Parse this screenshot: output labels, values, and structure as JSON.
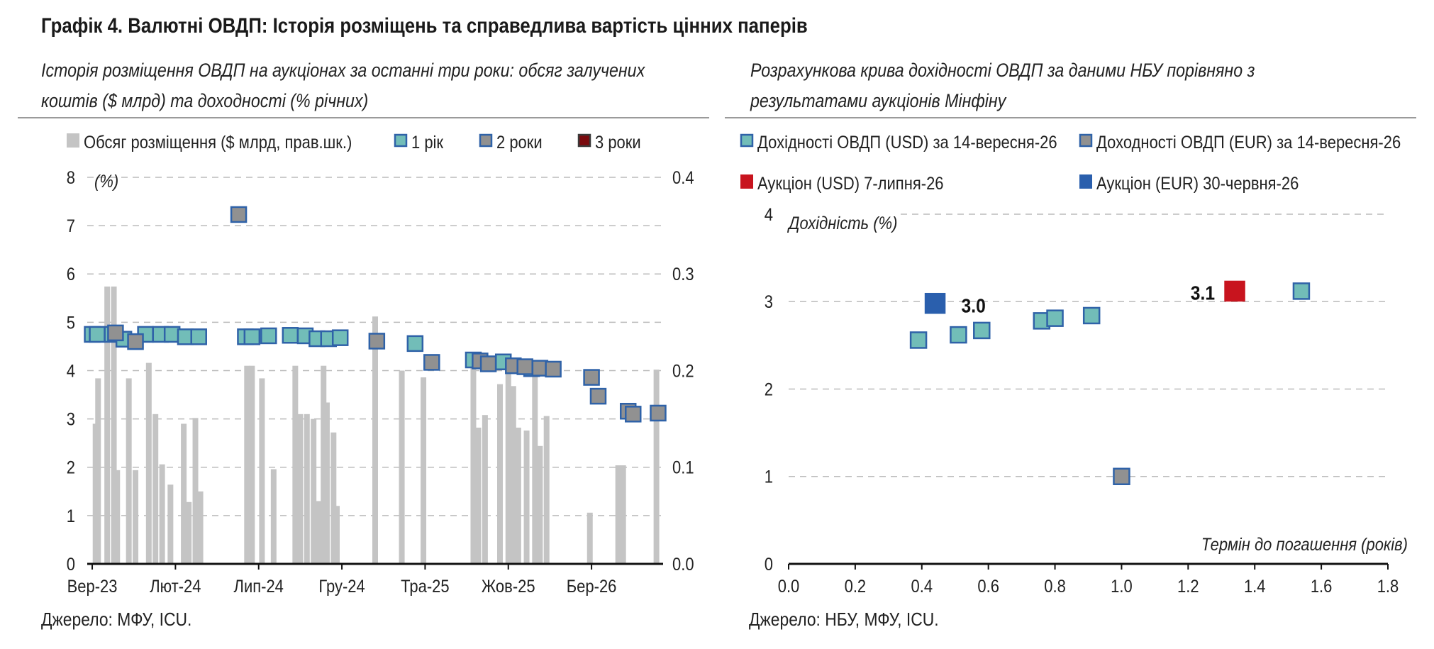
{
  "title": "Графік 4. Валютні ОВДП: Історія розміщень та справедлива вартість цінних паперів",
  "colors": {
    "bar": "#c4c4c4",
    "usd": "#72bdb8",
    "eur": "#919191",
    "border": "#2f62a8",
    "auction_usd": "#c8141e",
    "auction_eur": "#2a5fad",
    "three_year": "#7a0a0e",
    "grid": "#bbbbbb",
    "axis": "#111111"
  },
  "chart_data": [
    {
      "type": "bar+scatter",
      "subtitle": "Історія розміщення ОВДП на аукціонах за останні три роки: обсяг залучених коштів ($ млрд) та доходності (% річних)",
      "source": "Джерело: МФУ, ICU.",
      "y_unit": "(%)",
      "ylim": [
        0,
        8
      ],
      "y2lim": [
        0,
        0.4
      ],
      "y_ticks": [
        "0",
        "1",
        "2",
        "3",
        "4",
        "5",
        "6",
        "7",
        "8"
      ],
      "y2_ticks": [
        "0.0",
        "0.1",
        "0.2",
        "0.3",
        "0.4"
      ],
      "x_tick_labels": [
        {
          "label": "Вер-23",
          "at": 0
        },
        {
          "label": "Лют-24",
          "at": 5
        },
        {
          "label": "Лип-24",
          "at": 10
        },
        {
          "label": "Гру-24",
          "at": 15
        },
        {
          "label": "Тра-25",
          "at": 20
        },
        {
          "label": "Жов-25",
          "at": 25
        },
        {
          "label": "Бер-26",
          "at": 30
        }
      ],
      "x_span": [
        -0.3,
        34.3
      ],
      "grid": true,
      "legend": [
        "Обсяг розміщення ($ млрд, прав.шк.)",
        "1 рік",
        "2 роки",
        "3 роки"
      ],
      "legend_position": "top",
      "bars": [
        {
          "x": 0.2,
          "v": 0.145
        },
        {
          "x": 0.35,
          "v": 0.192
        },
        {
          "x": 0.9,
          "v": 0.287
        },
        {
          "x": 1.3,
          "v": 0.287
        },
        {
          "x": 1.5,
          "v": 0.097
        },
        {
          "x": 2.2,
          "v": 0.192
        },
        {
          "x": 2.6,
          "v": 0.097
        },
        {
          "x": 3.4,
          "v": 0.208
        },
        {
          "x": 3.8,
          "v": 0.155
        },
        {
          "x": 4.2,
          "v": 0.103
        },
        {
          "x": 4.7,
          "v": 0.082
        },
        {
          "x": 5.5,
          "v": 0.145
        },
        {
          "x": 5.8,
          "v": 0.064
        },
        {
          "x": 6.2,
          "v": 0.151
        },
        {
          "x": 6.5,
          "v": 0.075
        },
        {
          "x": 9.3,
          "v": 0.205
        },
        {
          "x": 9.6,
          "v": 0.205
        },
        {
          "x": 10.2,
          "v": 0.192
        },
        {
          "x": 10.9,
          "v": 0.098
        },
        {
          "x": 12.2,
          "v": 0.205
        },
        {
          "x": 12.5,
          "v": 0.155
        },
        {
          "x": 12.9,
          "v": 0.155
        },
        {
          "x": 13.3,
          "v": 0.15
        },
        {
          "x": 13.6,
          "v": 0.065
        },
        {
          "x": 13.9,
          "v": 0.205
        },
        {
          "x": 14.1,
          "v": 0.167
        },
        {
          "x": 14.5,
          "v": 0.136
        },
        {
          "x": 14.7,
          "v": 0.06
        },
        {
          "x": 17.0,
          "v": 0.256
        },
        {
          "x": 18.6,
          "v": 0.2
        },
        {
          "x": 19.9,
          "v": 0.193
        },
        {
          "x": 22.9,
          "v": 0.207
        },
        {
          "x": 23.2,
          "v": 0.141
        },
        {
          "x": 23.6,
          "v": 0.154
        },
        {
          "x": 24.5,
          "v": 0.186
        },
        {
          "x": 25.0,
          "v": 0.199
        },
        {
          "x": 25.3,
          "v": 0.184
        },
        {
          "x": 25.6,
          "v": 0.141
        },
        {
          "x": 26.1,
          "v": 0.138
        },
        {
          "x": 26.6,
          "v": 0.194
        },
        {
          "x": 26.9,
          "v": 0.122
        },
        {
          "x": 27.3,
          "v": 0.153
        },
        {
          "x": 29.9,
          "v": 0.053
        },
        {
          "x": 31.6,
          "v": 0.102
        },
        {
          "x": 31.9,
          "v": 0.102
        },
        {
          "x": 33.9,
          "v": 0.201
        }
      ],
      "series": [
        {
          "name": "1 рік",
          "points": [
            {
              "x": 0.0,
              "y": 4.75
            },
            {
              "x": 0.3,
              "y": 4.75
            },
            {
              "x": 1.2,
              "y": 4.75
            },
            {
              "x": 1.9,
              "y": 4.65
            },
            {
              "x": 3.2,
              "y": 4.75
            },
            {
              "x": 4.1,
              "y": 4.75
            },
            {
              "x": 4.8,
              "y": 4.75
            },
            {
              "x": 5.6,
              "y": 4.7
            },
            {
              "x": 6.4,
              "y": 4.7
            },
            {
              "x": 9.2,
              "y": 4.7
            },
            {
              "x": 9.6,
              "y": 4.7
            },
            {
              "x": 10.6,
              "y": 4.72
            },
            {
              "x": 11.9,
              "y": 4.73
            },
            {
              "x": 12.8,
              "y": 4.72
            },
            {
              "x": 13.5,
              "y": 4.66
            },
            {
              "x": 14.2,
              "y": 4.66
            },
            {
              "x": 14.9,
              "y": 4.68
            },
            {
              "x": 19.4,
              "y": 4.56
            },
            {
              "x": 22.9,
              "y": 4.22
            },
            {
              "x": 24.7,
              "y": 4.18
            },
            {
              "x": 26.4,
              "y": 4.04
            }
          ]
        },
        {
          "name": "2 роки",
          "points": [
            {
              "x": 1.4,
              "y": 4.78
            },
            {
              "x": 2.6,
              "y": 4.6
            },
            {
              "x": 8.8,
              "y": 7.23
            },
            {
              "x": 17.1,
              "y": 4.61
            },
            {
              "x": 20.4,
              "y": 4.17
            },
            {
              "x": 23.3,
              "y": 4.2
            },
            {
              "x": 23.8,
              "y": 4.14
            },
            {
              "x": 25.3,
              "y": 4.1
            },
            {
              "x": 26.0,
              "y": 4.08
            },
            {
              "x": 26.9,
              "y": 4.05
            },
            {
              "x": 27.7,
              "y": 4.03
            },
            {
              "x": 30.0,
              "y": 3.86
            },
            {
              "x": 30.4,
              "y": 3.47
            },
            {
              "x": 32.2,
              "y": 3.16
            },
            {
              "x": 32.5,
              "y": 3.1
            },
            {
              "x": 34.0,
              "y": 3.12
            }
          ]
        },
        {
          "name": "3 роки",
          "points": []
        }
      ]
    },
    {
      "type": "scatter",
      "subtitle": "Розрахункова крива дохідності ОВДП за даними НБУ порівняно з результатами аукціонів Мінфіну",
      "source": "Джерело: НБУ, МФУ, ICU.",
      "ylabel": "Дохідність (%)",
      "xlabel": "Термін до погашення (років)",
      "xlim": [
        0,
        1.8
      ],
      "ylim": [
        0,
        4
      ],
      "x_ticks": [
        "0.0",
        "0.2",
        "0.4",
        "0.6",
        "0.8",
        "1.0",
        "1.2",
        "1.4",
        "1.6",
        "1.8"
      ],
      "y_ticks": [
        "0",
        "1",
        "2",
        "3",
        "4"
      ],
      "grid": true,
      "legend_position": "top",
      "series": [
        {
          "name": "Дохідності ОВДП (USD) за 14-вересня-26",
          "points": [
            {
              "x": 0.39,
              "y": 2.56
            },
            {
              "x": 0.51,
              "y": 2.62
            },
            {
              "x": 0.58,
              "y": 2.67
            },
            {
              "x": 0.76,
              "y": 2.78
            },
            {
              "x": 0.8,
              "y": 2.81
            },
            {
              "x": 0.91,
              "y": 2.84
            },
            {
              "x": 1.54,
              "y": 3.12
            }
          ]
        },
        {
          "name": "Доходності ОВДП (EUR) за 14-вересня-26",
          "points": [
            {
              "x": 1.0,
              "y": 1.0
            }
          ]
        },
        {
          "name": "Аукціон (USD) 7-липня-26",
          "points": [
            {
              "x": 1.34,
              "y": 3.12,
              "label": "3.1"
            }
          ]
        },
        {
          "name": "Аукціон (EUR) 30-червня-26",
          "points": [
            {
              "x": 0.44,
              "y": 2.98,
              "label": "3.0"
            }
          ]
        }
      ]
    }
  ]
}
